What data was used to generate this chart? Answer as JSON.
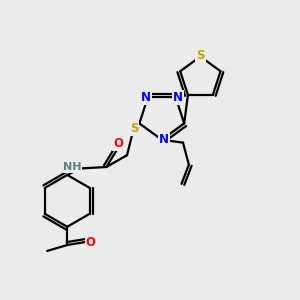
{
  "bg_color": "#ebebeb",
  "atom_colors": {
    "N": "#0000FF",
    "S": "#BBAA00",
    "O": "#FF0000",
    "C": "#000000",
    "H": "#5A8080"
  },
  "bond_color": "#000000",
  "line_width": 1.6,
  "figsize": [
    3.0,
    3.0
  ],
  "dpi": 100
}
